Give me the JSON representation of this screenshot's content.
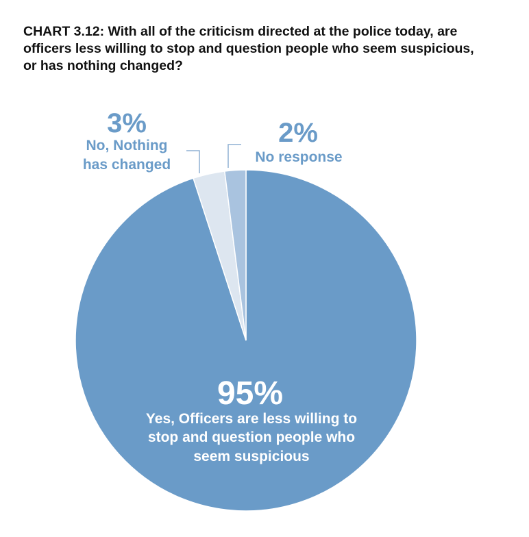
{
  "chart_data": {
    "type": "pie",
    "title": "CHART 3.12: With all of the criticism directed at the police today, are officers less willing to stop and question people who seem suspicious, or has nothing changed?",
    "slices": [
      {
        "label": "Yes, Officers are less willing to stop and question people who seem suspicious",
        "value": 95,
        "value_label": "95%",
        "color": "#6a9bc8"
      },
      {
        "label": "No, Nothing has changed",
        "value": 3,
        "value_label": "3%",
        "color": "#dde6f0"
      },
      {
        "label": "No response",
        "value": 2,
        "value_label": "2%",
        "color": "#a9c3df"
      }
    ],
    "start": "12 o'clock",
    "direction": "clockwise",
    "legend": "none (labels on chart)"
  }
}
